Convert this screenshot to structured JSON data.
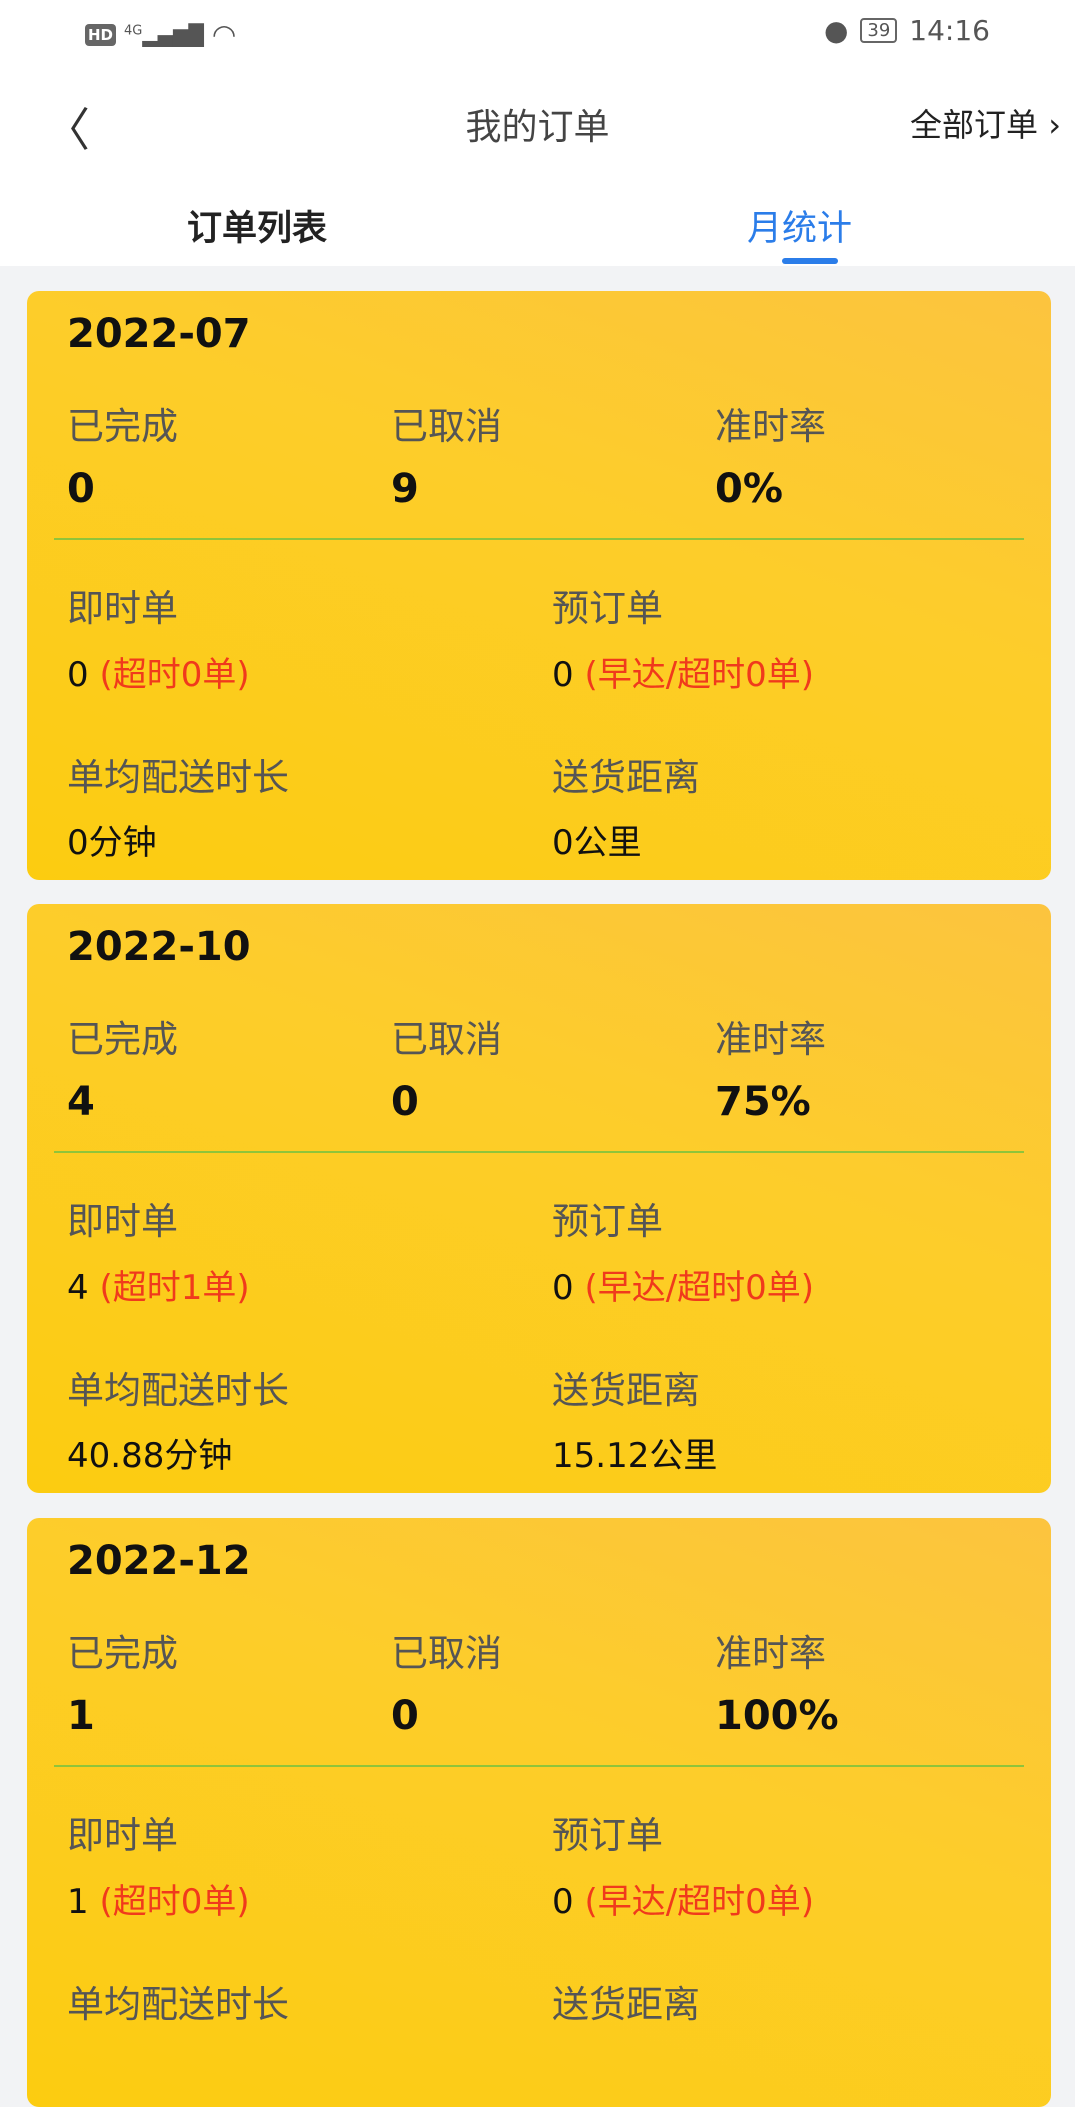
{
  "status_bar": {
    "network": "4G",
    "battery": "39",
    "time": "14:16"
  },
  "header": {
    "title": "我的订单",
    "all_orders": "全部订单"
  },
  "tabs": [
    {
      "label": "订单列表"
    },
    {
      "label": "月统计",
      "active": true
    }
  ],
  "labels": {
    "completed": "已完成",
    "cancelled": "已取消",
    "ontime": "准时率",
    "instant": "即时单",
    "reserved": "预订单",
    "avg_time": "单均配送时长",
    "distance": "送货距离"
  },
  "cards": [
    {
      "month": "2022-07",
      "completed": "0",
      "cancelled": "9",
      "ontime": "0%",
      "instant": "0",
      "instant_note": "(超时0单)",
      "reserved": "0",
      "reserved_note": "(早达/超时0单)",
      "avg_time": "0分钟",
      "distance": "0公里"
    },
    {
      "month": "2022-10",
      "completed": "4",
      "cancelled": "0",
      "ontime": "75%",
      "instant": "4",
      "instant_note": "(超时1单)",
      "reserved": "0",
      "reserved_note": "(早达/超时0单)",
      "avg_time": "40.88分钟",
      "distance": "15.12公里"
    },
    {
      "month": "2022-12",
      "completed": "1",
      "cancelled": "0",
      "ontime": "100%",
      "instant": "1",
      "instant_note": "(超时0单)",
      "reserved": "0",
      "reserved_note": "(早达/超时0单)",
      "avg_time": "",
      "distance": ""
    }
  ]
}
